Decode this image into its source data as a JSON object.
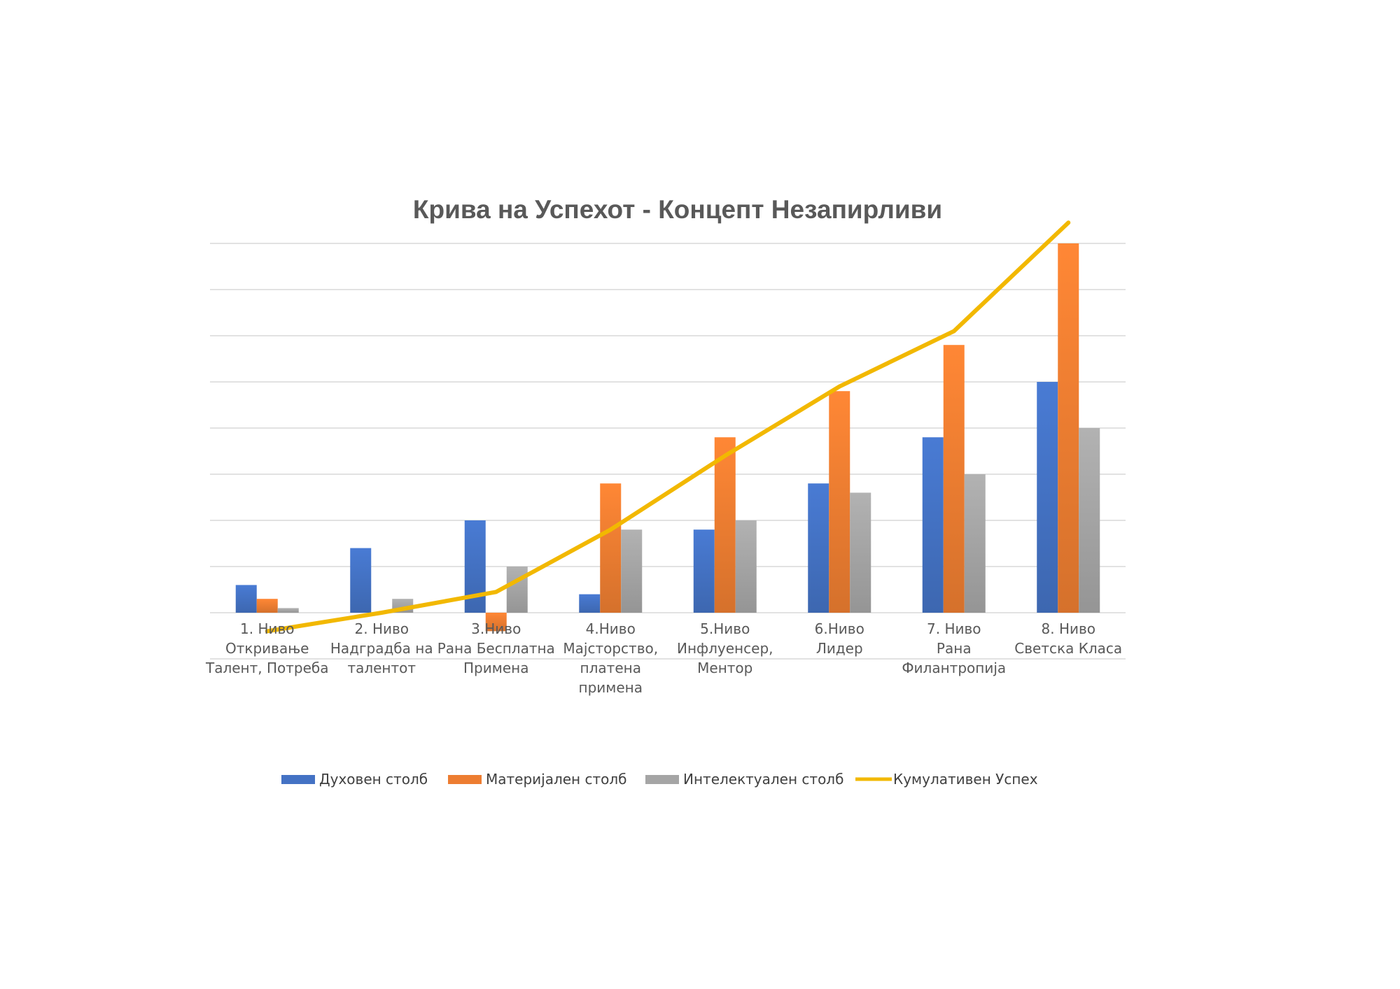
{
  "chart_data": {
    "type": "bar",
    "title": "Крива на Успехот - Концепт Незапирливи",
    "xlabel": "",
    "ylabel": "",
    "ylim": [
      0,
      8
    ],
    "grid": true,
    "legend_position": "bottom",
    "categories": [
      [
        "1. Ниво",
        "Откривање",
        "Талент, Потреба"
      ],
      [
        "2. Ниво",
        "Надградба на",
        "талентот"
      ],
      [
        "3.Ниво",
        "Рана Бесплатна",
        "Примена"
      ],
      [
        "4.Ниво",
        "Мајсторство,",
        "платена",
        "примена"
      ],
      [
        "5.Ниво",
        "Инфлуенсер,",
        "Ментор"
      ],
      [
        "6.Ниво",
        "Лидер"
      ],
      [
        "7. Ниво",
        "Рана",
        "Филантропија"
      ],
      [
        "8. Ниво",
        "Светска Класа"
      ]
    ],
    "series": [
      {
        "name": "Духовен столб",
        "kind": "bar",
        "color": "#4472c4",
        "values": [
          0.6,
          1.4,
          2.0,
          0.4,
          1.8,
          2.8,
          3.8,
          5.0
        ]
      },
      {
        "name": "Материјален столб",
        "kind": "bar",
        "color": "#ed7d31",
        "values": [
          0.3,
          0,
          -0.4,
          2.8,
          3.8,
          4.8,
          5.8,
          8.0
        ]
      },
      {
        "name": "Интелектуален столб",
        "kind": "bar",
        "color": "#a5a5a5",
        "values": [
          0.1,
          0.3,
          1.0,
          1.8,
          2.0,
          2.6,
          3.0,
          4.0
        ]
      },
      {
        "name": "Кумулативен Успех",
        "kind": "line",
        "color": "#f2b800",
        "values": [
          -0.4,
          0.0,
          0.45,
          1.8,
          3.4,
          4.9,
          6.1,
          8.45
        ]
      }
    ]
  }
}
